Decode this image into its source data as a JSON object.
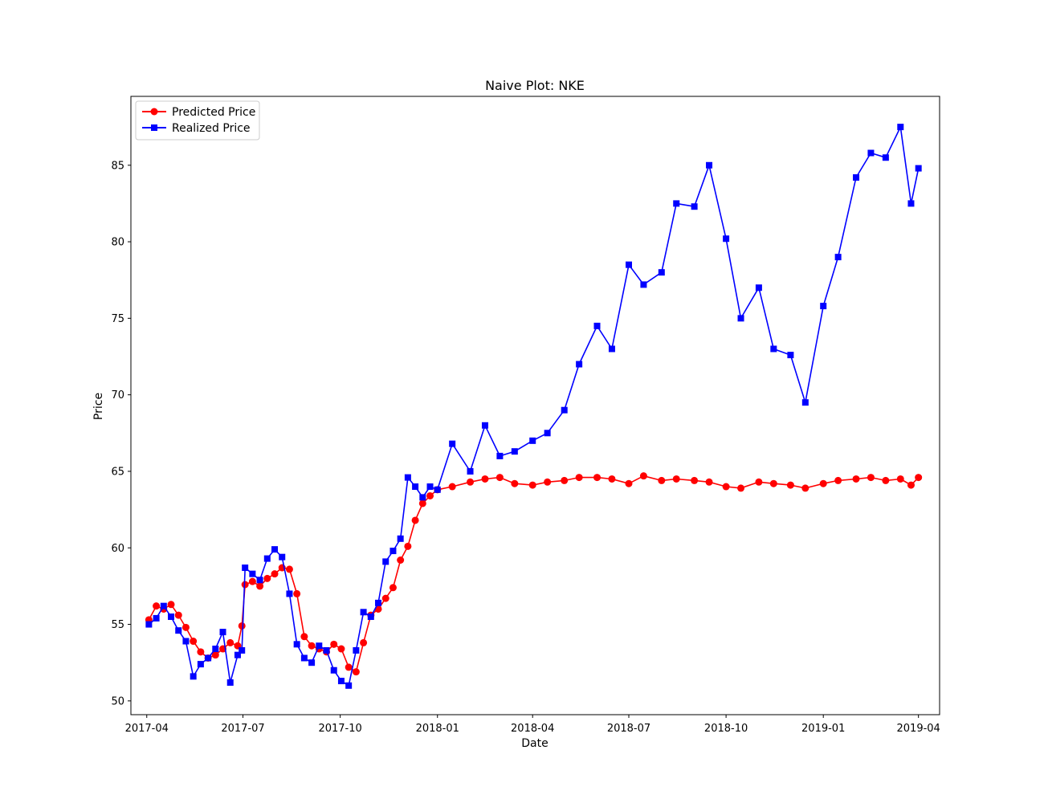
{
  "chart_data": {
    "type": "line",
    "title": "Naive Plot: NKE",
    "xlabel": "Date",
    "ylabel": "Price",
    "xlim": [
      "2017-03-17",
      "2019-04-21"
    ],
    "ylim": [
      49.1,
      89.5
    ],
    "x_ticks": [
      "2017-04",
      "2017-07",
      "2017-10",
      "2018-01",
      "2018-04",
      "2018-07",
      "2018-10",
      "2019-01",
      "2019-04"
    ],
    "y_ticks": [
      50,
      55,
      60,
      65,
      70,
      75,
      80,
      85
    ],
    "grid": false,
    "legend_position": "top-left",
    "series": [
      {
        "name": "Predicted Price",
        "color": "#ff0000",
        "marker": "circle",
        "x": [
          "2017-04-03",
          "2017-04-10",
          "2017-04-17",
          "2017-04-24",
          "2017-05-01",
          "2017-05-08",
          "2017-05-15",
          "2017-05-22",
          "2017-05-29",
          "2017-06-05",
          "2017-06-12",
          "2017-06-19",
          "2017-06-26",
          "2017-06-30",
          "2017-07-03",
          "2017-07-10",
          "2017-07-17",
          "2017-07-24",
          "2017-07-31",
          "2017-08-07",
          "2017-08-14",
          "2017-08-21",
          "2017-08-28",
          "2017-09-04",
          "2017-09-11",
          "2017-09-18",
          "2017-09-25",
          "2017-10-02",
          "2017-10-09",
          "2017-10-16",
          "2017-10-23",
          "2017-10-30",
          "2017-11-06",
          "2017-11-13",
          "2017-11-20",
          "2017-11-27",
          "2017-12-04",
          "2017-12-11",
          "2017-12-18",
          "2017-12-25",
          "2018-01-01",
          "2018-01-15",
          "2018-02-01",
          "2018-02-15",
          "2018-03-01",
          "2018-03-15",
          "2018-04-01",
          "2018-04-15",
          "2018-05-01",
          "2018-05-15",
          "2018-06-01",
          "2018-06-15",
          "2018-07-01",
          "2018-07-15",
          "2018-08-01",
          "2018-08-15",
          "2018-09-01",
          "2018-09-15",
          "2018-10-01",
          "2018-10-15",
          "2018-11-01",
          "2018-11-15",
          "2018-12-01",
          "2018-12-15",
          "2019-01-01",
          "2019-01-15",
          "2019-02-01",
          "2019-02-15",
          "2019-03-01",
          "2019-03-15",
          "2019-03-25",
          "2019-04-01"
        ],
        "values": [
          55.3,
          56.2,
          56.0,
          56.3,
          55.6,
          54.8,
          53.9,
          53.2,
          52.8,
          53.0,
          53.4,
          53.8,
          53.6,
          54.9,
          57.6,
          57.8,
          57.5,
          58.0,
          58.3,
          58.7,
          58.6,
          57.0,
          54.2,
          53.6,
          53.4,
          53.2,
          53.7,
          53.4,
          52.2,
          51.9,
          53.8,
          55.6,
          56.0,
          56.7,
          57.4,
          59.2,
          60.1,
          61.8,
          62.9,
          63.4,
          63.8,
          64.0,
          64.3,
          64.5,
          64.6,
          64.2,
          64.1,
          64.3,
          64.4,
          64.6,
          64.6,
          64.5,
          64.2,
          64.7,
          64.4,
          64.5,
          64.4,
          64.3,
          64.0,
          63.9,
          64.3,
          64.2,
          64.1,
          63.9,
          64.2,
          64.4,
          64.5,
          64.6,
          64.4,
          64.5,
          64.1,
          64.6
        ]
      },
      {
        "name": "Realized Price",
        "color": "#0000ff",
        "marker": "square",
        "x": [
          "2017-04-03",
          "2017-04-10",
          "2017-04-17",
          "2017-04-24",
          "2017-05-01",
          "2017-05-08",
          "2017-05-15",
          "2017-05-22",
          "2017-05-29",
          "2017-06-05",
          "2017-06-12",
          "2017-06-19",
          "2017-06-26",
          "2017-06-30",
          "2017-07-03",
          "2017-07-10",
          "2017-07-17",
          "2017-07-24",
          "2017-07-31",
          "2017-08-07",
          "2017-08-14",
          "2017-08-21",
          "2017-08-28",
          "2017-09-04",
          "2017-09-11",
          "2017-09-18",
          "2017-09-25",
          "2017-10-02",
          "2017-10-09",
          "2017-10-16",
          "2017-10-23",
          "2017-10-30",
          "2017-11-06",
          "2017-11-13",
          "2017-11-20",
          "2017-11-27",
          "2017-12-04",
          "2017-12-11",
          "2017-12-18",
          "2017-12-25",
          "2018-01-01",
          "2018-01-15",
          "2018-02-01",
          "2018-02-15",
          "2018-03-01",
          "2018-03-15",
          "2018-04-01",
          "2018-04-15",
          "2018-05-01",
          "2018-05-15",
          "2018-06-01",
          "2018-06-15",
          "2018-07-01",
          "2018-07-15",
          "2018-08-01",
          "2018-08-15",
          "2018-09-01",
          "2018-09-15",
          "2018-10-01",
          "2018-10-15",
          "2018-11-01",
          "2018-11-15",
          "2018-12-01",
          "2018-12-15",
          "2019-01-01",
          "2019-01-15",
          "2019-02-01",
          "2019-02-15",
          "2019-03-01",
          "2019-03-15",
          "2019-03-25",
          "2019-04-01"
        ],
        "values": [
          55.0,
          55.4,
          56.2,
          55.5,
          54.6,
          53.9,
          51.6,
          52.4,
          52.8,
          53.4,
          54.5,
          51.2,
          53.0,
          53.3,
          58.7,
          58.3,
          57.9,
          59.3,
          59.9,
          59.4,
          57.0,
          53.7,
          52.8,
          52.5,
          53.6,
          53.3,
          52.0,
          51.3,
          51.0,
          53.3,
          55.8,
          55.5,
          56.4,
          59.1,
          59.8,
          60.6,
          64.6,
          64.0,
          63.3,
          64.0,
          63.8,
          66.8,
          65.0,
          68.0,
          66.0,
          66.3,
          67.0,
          67.5,
          69.0,
          72.0,
          74.5,
          73.0,
          78.5,
          77.2,
          78.0,
          82.5,
          82.3,
          85.0,
          80.2,
          75.0,
          77.0,
          73.0,
          72.6,
          69.5,
          75.8,
          79.0,
          84.2,
          85.8,
          85.5,
          87.5,
          82.5,
          84.8
        ]
      }
    ]
  }
}
